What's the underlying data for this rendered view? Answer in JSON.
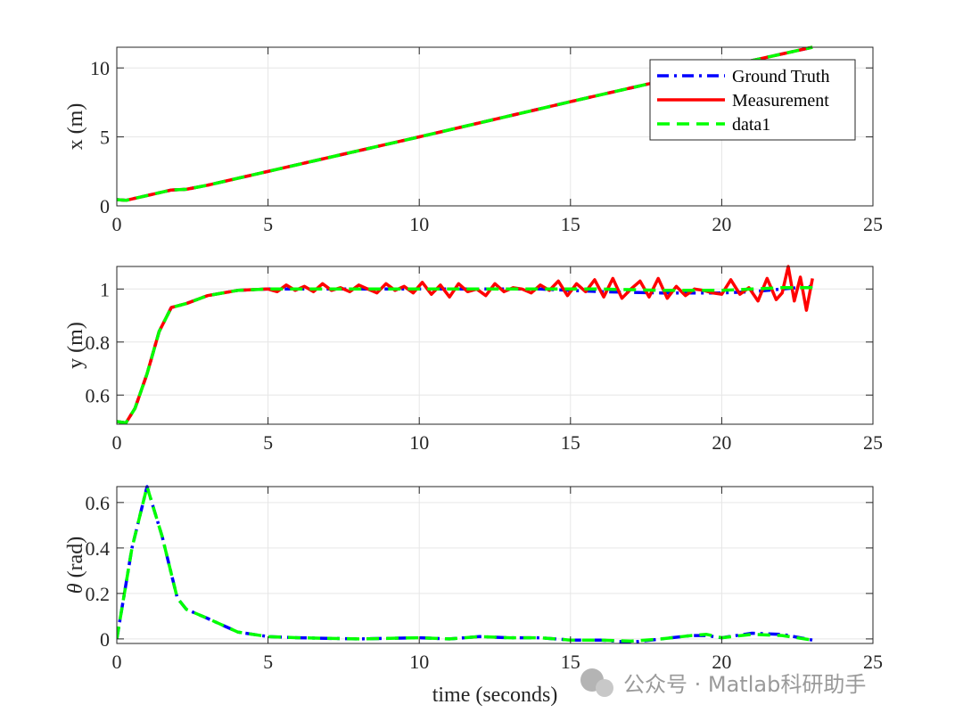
{
  "watermark": "公众号 · Matlab科研助手",
  "xlabel_bottom": "time (seconds)",
  "colors": {
    "ground_truth": "#0000ff",
    "measurement": "#ff0000",
    "data1": "#00ff00",
    "grid": "#e6e6e6",
    "axis": "#262626"
  },
  "chart_data": [
    {
      "type": "line",
      "ylabel": "x (m)",
      "xlim": [
        0,
        25
      ],
      "ylim": [
        0,
        11.5
      ],
      "xticks": [
        0,
        5,
        10,
        15,
        20,
        25
      ],
      "yticks": [
        0,
        5,
        10
      ],
      "grid": true,
      "legend": {
        "placement": "top-right",
        "entries": [
          "Ground Truth",
          "Measurement",
          "data1"
        ]
      },
      "series": [
        {
          "name": "Ground Truth",
          "style": "dashdot",
          "color": "#0000ff",
          "x": [
            0,
            0.3,
            1,
            1.8,
            2.3,
            3,
            5,
            10,
            15,
            20,
            23
          ],
          "y": [
            0.45,
            0.4,
            0.75,
            1.15,
            1.2,
            1.5,
            2.5,
            5.0,
            7.55,
            10.05,
            11.5
          ]
        },
        {
          "name": "Measurement",
          "style": "solid",
          "color": "#ff0000",
          "x": [
            0,
            0.3,
            1,
            1.8,
            2.3,
            3,
            5,
            10,
            15,
            20,
            23
          ],
          "y": [
            0.45,
            0.4,
            0.75,
            1.15,
            1.2,
            1.5,
            2.5,
            5.0,
            7.55,
            10.05,
            11.5
          ]
        },
        {
          "name": "data1",
          "style": "dashed",
          "color": "#00ff00",
          "x": [
            0,
            0.3,
            1,
            1.8,
            2.3,
            3,
            5,
            10,
            15,
            20,
            23
          ],
          "y": [
            0.45,
            0.4,
            0.75,
            1.15,
            1.2,
            1.5,
            2.5,
            5.0,
            7.55,
            10.05,
            11.5
          ]
        }
      ]
    },
    {
      "type": "line",
      "ylabel": "y (m)",
      "xlim": [
        0,
        25
      ],
      "ylim": [
        0.49,
        1.085
      ],
      "xticks": [
        0,
        5,
        10,
        15,
        20,
        25
      ],
      "yticks": [
        0.6,
        0.8,
        1
      ],
      "ytick_labels": [
        "0.6",
        "0.8",
        "1"
      ],
      "grid": true,
      "series": [
        {
          "name": "Ground Truth",
          "style": "dashdot",
          "color": "#0000ff",
          "x": [
            0,
            0.3,
            0.6,
            1.0,
            1.4,
            1.8,
            2.3,
            3,
            4,
            5,
            8,
            10,
            12,
            14,
            15,
            16,
            18,
            20,
            21,
            23
          ],
          "y": [
            0.5,
            0.495,
            0.55,
            0.68,
            0.84,
            0.93,
            0.945,
            0.975,
            0.995,
            1.0,
            1.0,
            1.0,
            1.0,
            1.0,
            0.995,
            0.99,
            0.985,
            0.985,
            0.99,
            1.01
          ]
        },
        {
          "name": "Measurement",
          "style": "solid",
          "color": "#ff0000",
          "x": [
            0,
            0.3,
            0.6,
            1.0,
            1.4,
            1.8,
            2.3,
            3,
            4,
            5,
            5.3,
            5.6,
            5.9,
            6.2,
            6.5,
            6.8,
            7.1,
            7.4,
            7.7,
            8.0,
            8.3,
            8.6,
            8.9,
            9.2,
            9.5,
            9.8,
            10.1,
            10.4,
            10.7,
            11.0,
            11.3,
            11.6,
            11.9,
            12.2,
            12.5,
            12.8,
            13.1,
            13.4,
            13.7,
            14.0,
            14.3,
            14.6,
            14.9,
            15.2,
            15.5,
            15.8,
            16.1,
            16.4,
            16.7,
            17.0,
            17.3,
            17.6,
            17.9,
            18.2,
            18.5,
            18.8,
            19.1,
            19.4,
            19.7,
            20.0,
            20.3,
            20.6,
            20.9,
            21.2,
            21.5,
            21.8,
            22.0,
            22.2,
            22.4,
            22.6,
            22.8,
            23.0
          ],
          "y": [
            0.5,
            0.495,
            0.55,
            0.68,
            0.84,
            0.93,
            0.945,
            0.975,
            0.995,
            1.0,
            0.99,
            1.015,
            0.995,
            1.01,
            0.99,
            1.02,
            0.995,
            1.005,
            0.99,
            1.015,
            1.0,
            0.985,
            1.02,
            0.995,
            1.01,
            0.985,
            1.025,
            0.98,
            1.015,
            0.97,
            1.02,
            0.99,
            1.0,
            0.975,
            1.02,
            0.99,
            1.005,
            1.0,
            0.985,
            1.015,
            0.995,
            1.03,
            0.975,
            1.02,
            0.99,
            1.035,
            0.97,
            1.04,
            0.965,
            1.0,
            1.03,
            0.97,
            1.04,
            0.965,
            1.01,
            0.975,
            1.0,
            0.995,
            0.985,
            0.98,
            1.035,
            0.98,
            1.005,
            0.955,
            1.04,
            0.96,
            0.985,
            1.085,
            0.955,
            1.045,
            0.92,
            1.04
          ]
        },
        {
          "name": "data1",
          "style": "dashed",
          "color": "#00ff00",
          "x": [
            0,
            0.3,
            0.6,
            1.0,
            1.4,
            1.8,
            2.3,
            3,
            4,
            5,
            8,
            10,
            12,
            14,
            15,
            16,
            18,
            20,
            21,
            22,
            23
          ],
          "y": [
            0.5,
            0.495,
            0.55,
            0.68,
            0.84,
            0.93,
            0.945,
            0.975,
            0.995,
            1.0,
            1.0,
            1.0,
            1.0,
            1.0,
            1.0,
            1.0,
            0.995,
            0.995,
            1.0,
            1.005,
            1.005
          ]
        }
      ]
    },
    {
      "type": "line",
      "ylabel": "θ (rad)",
      "xlim": [
        0,
        25
      ],
      "ylim": [
        -0.02,
        0.67
      ],
      "xticks": [
        0,
        5,
        10,
        15,
        20,
        25
      ],
      "yticks": [
        0,
        0.2,
        0.4,
        0.6
      ],
      "ytick_labels": [
        "0",
        "0.2",
        "0.4",
        "0.6"
      ],
      "grid": true,
      "series": [
        {
          "name": "Ground Truth",
          "style": "dashdot",
          "color": "#0000ff",
          "x": [
            0,
            0.5,
            1.0,
            1.5,
            2.0,
            2.3,
            3,
            4,
            5,
            6,
            8,
            10,
            11,
            12,
            13,
            14,
            15,
            16,
            17,
            18,
            19,
            19.5,
            20,
            21,
            22,
            23
          ],
          "y": [
            0,
            0.4,
            0.67,
            0.45,
            0.18,
            0.13,
            0.09,
            0.03,
            0.01,
            0.005,
            0.0,
            0.005,
            0.0,
            0.01,
            0.005,
            0.005,
            -0.005,
            -0.005,
            -0.015,
            0.0,
            0.015,
            0.015,
            0.005,
            0.025,
            0.02,
            -0.005
          ]
        },
        {
          "name": "data1",
          "style": "dashed",
          "color": "#00ff00",
          "x": [
            0,
            0.5,
            1.0,
            1.5,
            2.0,
            2.3,
            3,
            4,
            5,
            6,
            8,
            10,
            11,
            12,
            13,
            14,
            15,
            16,
            17,
            18,
            19,
            19.5,
            20,
            21,
            22,
            23
          ],
          "y": [
            0,
            0.4,
            0.67,
            0.45,
            0.18,
            0.13,
            0.09,
            0.03,
            0.01,
            0.005,
            0.0,
            0.005,
            0.0,
            0.01,
            0.005,
            0.005,
            -0.005,
            -0.005,
            -0.01,
            0.0,
            0.015,
            0.02,
            0.005,
            0.02,
            0.015,
            -0.005
          ]
        }
      ]
    }
  ]
}
